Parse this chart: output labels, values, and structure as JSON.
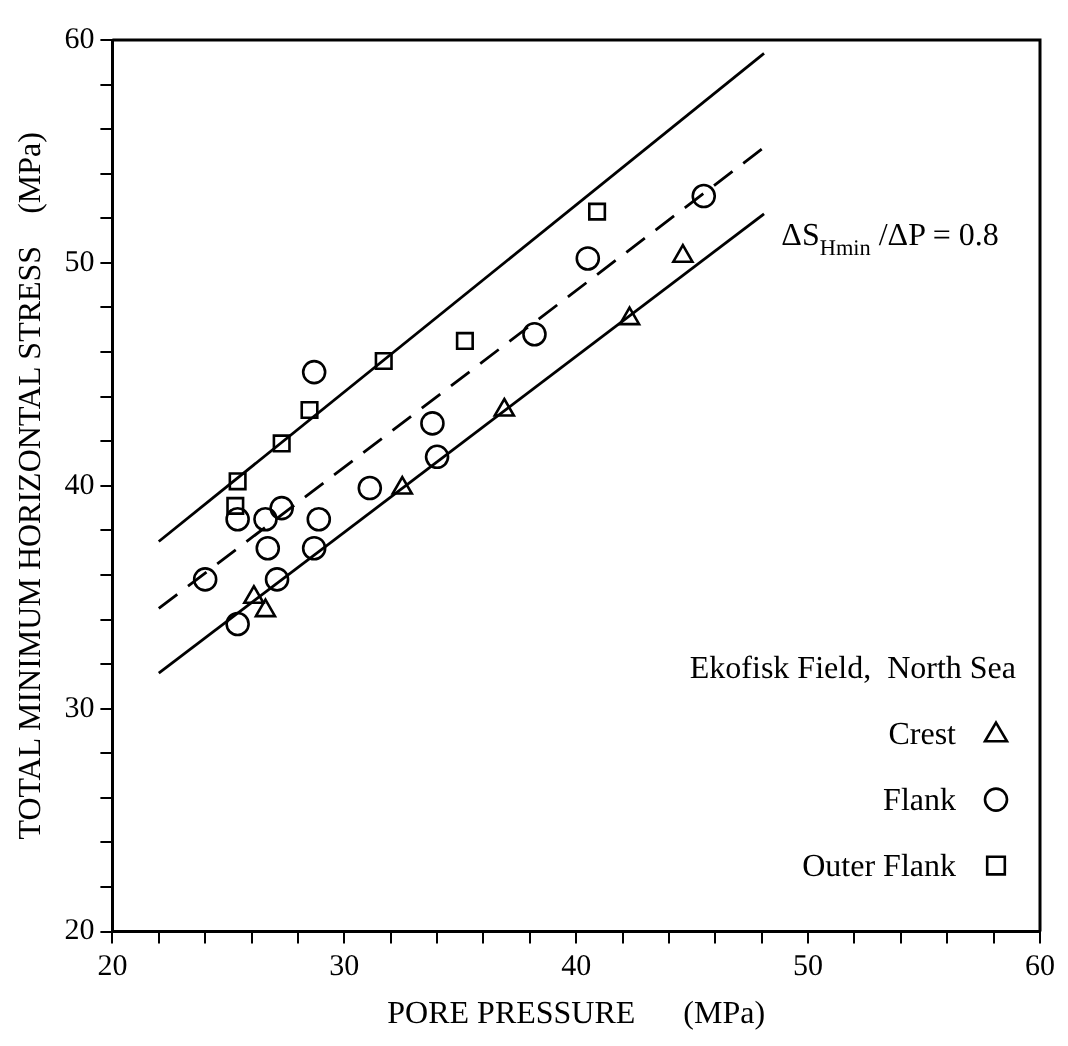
{
  "chart_data": {
    "type": "scatter",
    "xlabel": "PORE PRESSURE      (MPa)",
    "ylabel": "TOTAL MINIMUM HORIZONTAL STRESS    (MPa)",
    "legend_title": "Ekofisk Field,  North Sea",
    "legend": "bottom right",
    "grid": false,
    "xlim": [
      20,
      60
    ],
    "ylim": [
      20,
      60
    ],
    "xticks": [
      20,
      {
        "value": 22,
        "label": null
      },
      {
        "value": 24,
        "label": null
      },
      {
        "value": 26,
        "label": null
      },
      {
        "value": 28,
        "label": null
      },
      30,
      {
        "value": 32,
        "label": null
      },
      {
        "value": 34,
        "label": null
      },
      {
        "value": 36,
        "label": null
      },
      {
        "value": 38,
        "label": null
      },
      40,
      {
        "value": 42,
        "label": null
      },
      {
        "value": 44,
        "label": null
      },
      {
        "value": 46,
        "label": null
      },
      {
        "value": 48,
        "label": null
      },
      50,
      {
        "value": 52,
        "label": null
      },
      {
        "value": 54,
        "label": null
      },
      {
        "value": 56,
        "label": null
      },
      {
        "value": 58,
        "label": null
      },
      60
    ],
    "yticks": [
      20,
      {
        "value": 22,
        "label": null
      },
      {
        "value": 24,
        "label": null
      },
      {
        "value": 26,
        "label": null
      },
      {
        "value": 28,
        "label": null
      },
      30,
      {
        "value": 32,
        "label": null
      },
      {
        "value": 34,
        "label": null
      },
      {
        "value": 36,
        "label": null
      },
      {
        "value": 38,
        "label": null
      },
      40,
      {
        "value": 42,
        "label": null
      },
      {
        "value": 44,
        "label": null
      },
      {
        "value": 46,
        "label": null
      },
      {
        "value": 48,
        "label": null
      },
      50,
      {
        "value": 52,
        "label": null
      },
      {
        "value": 54,
        "label": null
      },
      {
        "value": 56,
        "label": null
      },
      {
        "value": 58,
        "label": null
      },
      60
    ],
    "annotations": [
      "ΔS$_{Hmin}$ /ΔP = 0.8"
    ],
    "series": [
      {
        "name": "Crest",
        "marker": "triangle",
        "color": "#000000",
        "x": [
          26.1,
          26.6,
          32.5,
          36.9,
          42.3,
          44.6
        ],
        "values": [
          35.0,
          34.4,
          39.9,
          43.4,
          47.5,
          50.3
        ]
      },
      {
        "name": "Flank",
        "marker": "circle",
        "color": "#000000",
        "x": [
          28.7,
          25.4,
          26.6,
          27.3,
          28.9,
          26.7,
          28.7,
          27.1,
          24.0,
          25.4,
          31.1,
          33.8,
          34.0,
          38.2,
          40.5,
          45.5
        ],
        "values": [
          45.1,
          38.5,
          38.5,
          39.0,
          38.5,
          37.2,
          37.2,
          35.8,
          35.8,
          33.8,
          39.9,
          42.8,
          41.3,
          46.8,
          50.2,
          53.0
        ]
      },
      {
        "name": "Outer Flank",
        "marker": "square",
        "color": "#000000",
        "x": [
          25.4,
          25.3,
          27.3,
          28.5,
          31.7,
          35.2,
          40.9
        ],
        "values": [
          40.2,
          39.1,
          41.9,
          43.4,
          45.6,
          46.5,
          52.3
        ]
      },
      {
        "type": "line",
        "marker": "none",
        "line_style": "solid",
        "color": "#000000",
        "x": [
          22.0,
          48.1
        ],
        "values": [
          37.5,
          59.4
        ]
      },
      {
        "type": "line",
        "marker": "none",
        "line_style": "dashed",
        "color": "#000000",
        "x": [
          22.0,
          48.0
        ],
        "values": [
          34.5,
          55.1
        ]
      },
      {
        "type": "line",
        "marker": "none",
        "line_style": "solid",
        "color": "#000000",
        "x": [
          22.0,
          48.1
        ],
        "values": [
          31.6,
          52.2
        ]
      }
    ]
  }
}
